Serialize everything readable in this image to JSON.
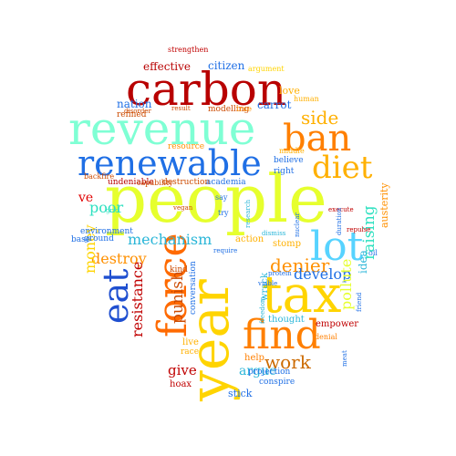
{
  "words": [
    {
      "text": "people",
      "color": "#e6ff2e"
    },
    {
      "text": "revenue",
      "color": "#7fffd4"
    },
    {
      "text": "carbon",
      "color": "#b80000"
    },
    {
      "text": "renewable",
      "color": "#1f6fe5"
    },
    {
      "text": "year",
      "color": "#ffd400"
    },
    {
      "text": "tax",
      "color": "#ffd400"
    },
    {
      "text": "lot",
      "color": "#57d3ff"
    },
    {
      "text": "find",
      "color": "#ff7f00"
    },
    {
      "text": "force",
      "color": "#ff6a00"
    },
    {
      "text": "ban",
      "color": "#ff7f00"
    },
    {
      "text": "diet",
      "color": "#ffb000"
    },
    {
      "text": "eat",
      "color": "#1f4fd0"
    },
    {
      "text": "side",
      "color": "#ffb000"
    },
    {
      "text": "work",
      "color": "#cc6a00"
    },
    {
      "text": "denier",
      "color": "#ff9000"
    },
    {
      "text": "raising",
      "color": "#2ee0c0"
    },
    {
      "text": "mechanism",
      "color": "#2ab6d8"
    },
    {
      "text": "destroy",
      "color": "#ff9000"
    },
    {
      "text": "punish",
      "color": "#cc4a00"
    },
    {
      "text": "resistance",
      "color": "#c00000"
    },
    {
      "text": "money",
      "color": "#ffd400"
    },
    {
      "text": "develop",
      "color": "#1f6fe5"
    },
    {
      "text": "pollute",
      "color": "#e6ff2e"
    },
    {
      "text": "argue",
      "color": "#2ab6d8"
    },
    {
      "text": "give",
      "color": "#c00000"
    },
    {
      "text": "poor",
      "color": "#2ee0c0"
    },
    {
      "text": "ve",
      "color": "#e00000"
    },
    {
      "text": "effective",
      "color": "#b80000"
    },
    {
      "text": "citizen",
      "color": "#1f6fe5"
    },
    {
      "text": "nation",
      "color": "#1f6fe5"
    },
    {
      "text": "carrot",
      "color": "#1f6fe5"
    },
    {
      "text": "modelling",
      "color": "#cc4a00"
    },
    {
      "text": "refined",
      "color": "#cc4a00"
    },
    {
      "text": "love",
      "color": "#ffb000"
    },
    {
      "text": "undeniable",
      "color": "#b80000"
    },
    {
      "text": "backfire",
      "color": "#cc4a00"
    },
    {
      "text": "capability",
      "color": "#cc4a00"
    },
    {
      "text": "environment",
      "color": "#1f6fe5"
    },
    {
      "text": "destruction",
      "color": "#cc4a00"
    },
    {
      "text": "academia",
      "color": "#1f6fe5"
    },
    {
      "text": "base",
      "color": "#1f6fe5"
    },
    {
      "text": "ground",
      "color": "#1f6fe5"
    },
    {
      "text": "idea",
      "color": "#2ab6d8"
    },
    {
      "text": "empower",
      "color": "#c00000"
    },
    {
      "text": "projection",
      "color": "#1f6fe5"
    },
    {
      "text": "conspire",
      "color": "#1f6fe5"
    },
    {
      "text": "stick",
      "color": "#1f6fe5"
    },
    {
      "text": "hoax",
      "color": "#c00000"
    },
    {
      "text": "help",
      "color": "#ff7f00"
    },
    {
      "text": "thought",
      "color": "#2ab6d8"
    },
    {
      "text": "stomp",
      "color": "#ffb000"
    },
    {
      "text": "wrack",
      "color": "#2ab6d8"
    },
    {
      "text": "action",
      "color": "#ffb000"
    },
    {
      "text": "believe",
      "color": "#1f6fe5"
    },
    {
      "text": "right",
      "color": "#1f6fe5"
    },
    {
      "text": "conversation",
      "color": "#1f6fe5"
    },
    {
      "text": "kind",
      "color": "#cc4a00"
    },
    {
      "text": "live",
      "color": "#ffb000"
    },
    {
      "text": "race",
      "color": "#ffb000"
    },
    {
      "text": "resource",
      "color": "#ff9000"
    },
    {
      "text": "strengthen",
      "color": "#c00000"
    },
    {
      "text": "argument",
      "color": "#ffd400"
    },
    {
      "text": "human",
      "color": "#ffb000"
    },
    {
      "text": "true",
      "color": "#ff9000"
    },
    {
      "text": "result",
      "color": "#cc4a00"
    },
    {
      "text": "disorder",
      "color": "#cc4a00"
    },
    {
      "text": "middle",
      "color": "#ffb000"
    },
    {
      "text": "say",
      "color": "#1f6fe5"
    },
    {
      "text": "try",
      "color": "#1f6fe5"
    },
    {
      "text": "vegan",
      "color": "#cc4a00"
    },
    {
      "text": "grid",
      "color": "#2ee0c0"
    },
    {
      "text": "nuclear",
      "color": "#1f6fe5"
    },
    {
      "text": "research",
      "color": "#2ab6d8"
    },
    {
      "text": "require",
      "color": "#1f6fe5"
    },
    {
      "text": "dismiss",
      "color": "#2ab6d8"
    },
    {
      "text": "protein",
      "color": "#1f6fe5"
    },
    {
      "text": "viable",
      "color": "#1f6fe5"
    },
    {
      "text": "freedom",
      "color": "#2ab6d8"
    },
    {
      "text": "denial",
      "color": "#ff7f00"
    },
    {
      "text": "execute",
      "color": "#c00000"
    },
    {
      "text": "repulse",
      "color": "#c00000"
    },
    {
      "text": "austerity",
      "color": "#ff9000"
    },
    {
      "text": "duration",
      "color": "#1f6fe5"
    },
    {
      "text": "oil",
      "color": "#1f6fe5"
    },
    {
      "text": "meat",
      "color": "#1f6fe5"
    },
    {
      "text": "friend",
      "color": "#1f6fe5"
    },
    {
      "text": "money",
      "color": "#ffd400"
    }
  ]
}
